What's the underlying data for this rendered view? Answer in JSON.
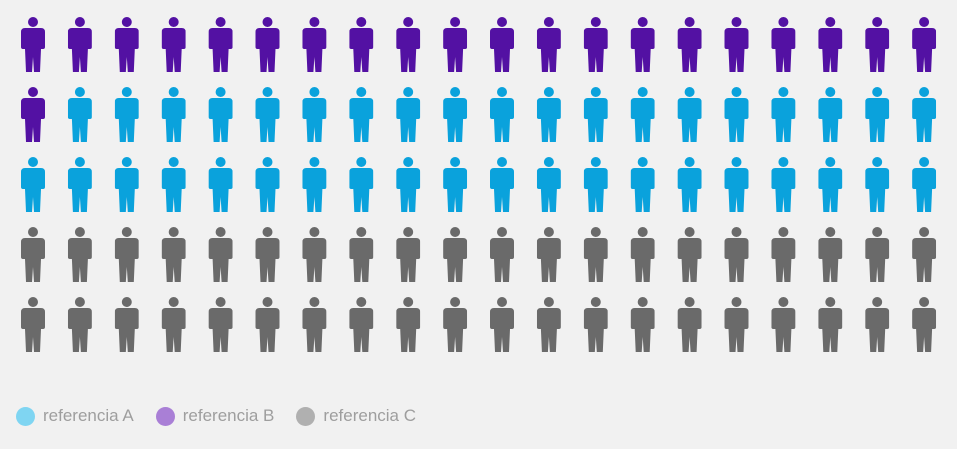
{
  "chart_data": {
    "type": "pictogram",
    "icon": "person-icon",
    "icons_per_row": 20,
    "rows": 5,
    "series": [
      {
        "name": "referencia B",
        "value": 21,
        "icon_color": "#5311a3",
        "legend_color": "#a97fd6"
      },
      {
        "name": "referencia A",
        "value": 39,
        "icon_color": "#0aa2dc",
        "legend_color": "#7fd5f2"
      },
      {
        "name": "referencia C",
        "value": 40,
        "icon_color": "#6a6a6a",
        "legend_color": "#b0b0b0"
      }
    ]
  },
  "legend": [
    {
      "label": "referencia A",
      "color": "#7fd5f2"
    },
    {
      "label": "referencia B",
      "color": "#a97fd6"
    },
    {
      "label": "referencia C",
      "color": "#b0b0b0"
    }
  ]
}
